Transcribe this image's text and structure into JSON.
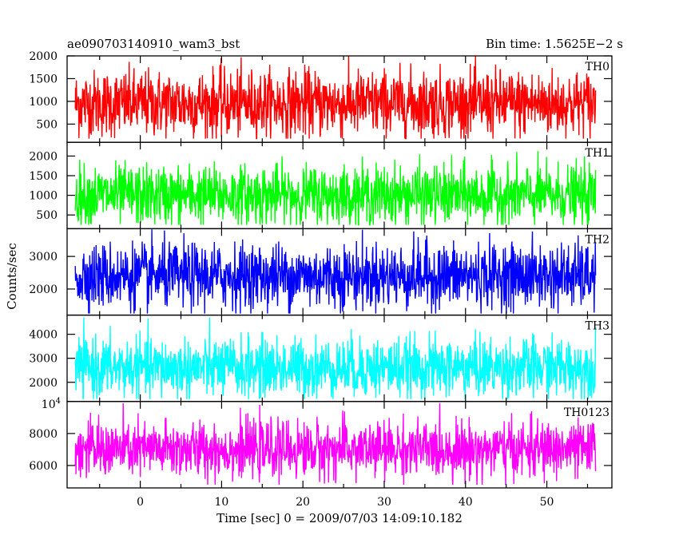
{
  "header": {
    "title": "ae090703140910_wam3_bst",
    "bin_time": "Bin time: 1.5625E−2 s"
  },
  "chart_data": {
    "type": "line",
    "ylabel": "Counts/sec",
    "xlabel": "Time [sec] 0 = 2009/07/03 14:09:10.182",
    "xlim": [
      -9,
      58
    ],
    "data_x_range": [
      -8,
      56
    ],
    "bin_time_s": 0.015625,
    "x_ticks": [
      0,
      10,
      20,
      30,
      40,
      50
    ],
    "grid": false,
    "panels": [
      {
        "name": "TH0",
        "color": "#ff0000",
        "ylim": [
          100,
          2000
        ],
        "y_ticks": [
          {
            "v": 500,
            "t": "500"
          },
          {
            "v": 1000,
            "t": "1000"
          },
          {
            "v": 1500,
            "t": "1500"
          },
          {
            "v": 2000,
            "t": "2000"
          }
        ],
        "mean": 950,
        "low_envelope": 280,
        "high_envelope": 1750,
        "min": 180,
        "max": 2000
      },
      {
        "name": "TH1",
        "color": "#00ff00",
        "ylim": [
          150,
          2350
        ],
        "y_ticks": [
          {
            "v": 500,
            "t": "500"
          },
          {
            "v": 1000,
            "t": "1000"
          },
          {
            "v": 1500,
            "t": "1500"
          },
          {
            "v": 2000,
            "t": "2000"
          }
        ],
        "mean": 1000,
        "low_envelope": 380,
        "high_envelope": 1900,
        "min": 250,
        "max": 2350
      },
      {
        "name": "TH2",
        "color": "#0000ff",
        "ylim": [
          1200,
          3850
        ],
        "y_ticks": [
          {
            "v": 2000,
            "t": "2000"
          },
          {
            "v": 3000,
            "t": "3000"
          }
        ],
        "mean": 2400,
        "low_envelope": 1500,
        "high_envelope": 3500,
        "min": 1250,
        "max": 3850
      },
      {
        "name": "TH3",
        "color": "#00ffff",
        "ylim": [
          1200,
          4800
        ],
        "y_ticks": [
          {
            "v": 2000,
            "t": "2000"
          },
          {
            "v": 3000,
            "t": "3000"
          },
          {
            "v": 4000,
            "t": "4000"
          }
        ],
        "mean": 2600,
        "low_envelope": 1700,
        "high_envelope": 4200,
        "min": 1300,
        "max": 4700
      },
      {
        "name": "TH0123",
        "color": "#ff00ff",
        "ylim": [
          4600,
          10000
        ],
        "y_ticks": [
          {
            "v": 6000,
            "t": "6000"
          },
          {
            "v": 8000,
            "t": "8000"
          },
          {
            "v": 10000,
            "t": "10",
            "exp": "4"
          }
        ],
        "mean": 7000,
        "low_envelope": 5500,
        "high_envelope": 9000,
        "min": 4800,
        "max": 9900
      }
    ]
  }
}
